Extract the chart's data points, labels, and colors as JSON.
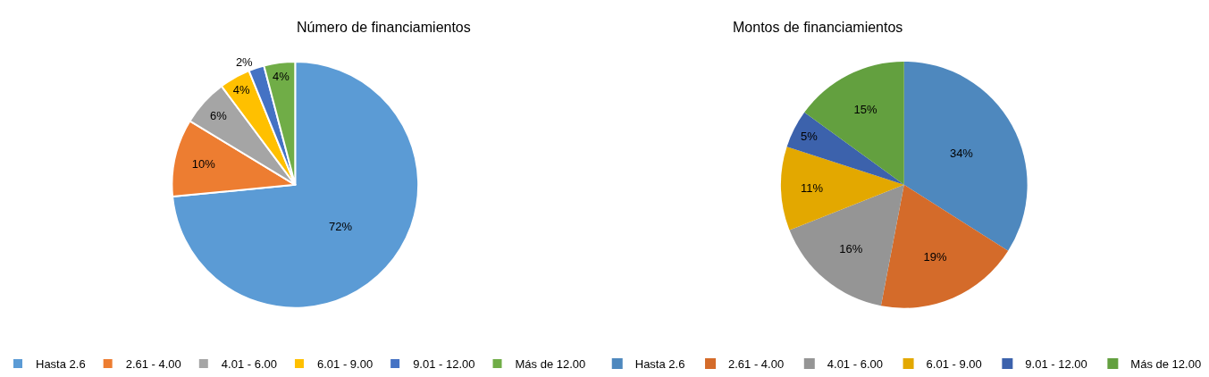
{
  "chart_data": [
    {
      "type": "pie",
      "title": "Número de financiamientos",
      "categories": [
        "Hasta 2.6",
        "2.61 - 4.00",
        "4.01 - 6.00",
        "6.01 - 9.00",
        "9.01 - 12.00",
        "Más de 12.00"
      ],
      "values": [
        72,
        10,
        6,
        4,
        2,
        4
      ],
      "value_labels": [
        "72%",
        "10%",
        "6%",
        "4%",
        "2%",
        "4%"
      ],
      "colors": [
        "#5b9bd5",
        "#ed7d31",
        "#a5a5a5",
        "#ffc000",
        "#4472c4",
        "#70ad47"
      ],
      "legend": "bottom"
    },
    {
      "type": "pie",
      "title": "Montos de financiamientos",
      "categories": [
        "Hasta 2.6",
        "2.61 - 4.00",
        "4.01 - 6.00",
        "6.01 - 9.00",
        "9.01 - 12.00",
        "Más de 12.00"
      ],
      "values": [
        34,
        19,
        16,
        11,
        5,
        15
      ],
      "value_labels": [
        "34%",
        "19%",
        "16%",
        "11%",
        "5%",
        "15%"
      ],
      "colors": [
        "#4e88be",
        "#d46b2a",
        "#959595",
        "#e3a800",
        "#3c62ac",
        "#63a03f"
      ],
      "legend": "bottom"
    }
  ]
}
